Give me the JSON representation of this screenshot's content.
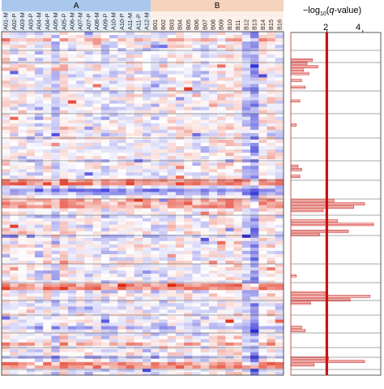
{
  "chart_data": [
    {
      "type": "heatmap",
      "groups": [
        {
          "name": "A",
          "color": "#a9c8ec",
          "columns": [
            "A01-M",
            "A02-P",
            "A03-M",
            "A03-P",
            "A04-M",
            "A04-P",
            "A05-M",
            "A05-P",
            "A06-M",
            "A07-M",
            "A07-P",
            "A08-M",
            "A09-P",
            "A10-M",
            "A10-P",
            "A11-M",
            "A11-P",
            "A12-M"
          ]
        },
        {
          "name": "B",
          "color": "#f6d3bd",
          "columns": [
            "B01",
            "B02",
            "B03",
            "B04",
            "B05",
            "B06",
            "B07",
            "B08",
            "B09",
            "B10",
            "B11",
            "B12",
            "B13",
            "B14",
            "B15",
            "B16"
          ]
        }
      ],
      "color_scale": {
        "low": "#2a2ad6",
        "mid": "#ffffff",
        "high": "#e02a14"
      },
      "grid": false,
      "legend": "none"
    },
    {
      "type": "line",
      "title": "−log10(q-value)",
      "title_parts": {
        "prefix": "−log",
        "subscript": "10",
        "paren_open": "(",
        "italic": "q",
        "suffix": "-value)"
      },
      "x_ticks": [
        "2",
        "4"
      ],
      "xlim": [
        0,
        5
      ],
      "threshold": 2,
      "threshold_color": "#cc1111",
      "line_color": "#d9534f",
      "peaks": [
        {
          "row": 0.08,
          "value": 1.2
        },
        {
          "row": 0.09,
          "value": 0.9
        },
        {
          "row": 0.1,
          "value": 1.5
        },
        {
          "row": 0.11,
          "value": 0.7
        },
        {
          "row": 0.12,
          "value": 1.0
        },
        {
          "row": 0.14,
          "value": 0.6
        },
        {
          "row": 0.16,
          "value": 0.8
        },
        {
          "row": 0.2,
          "value": 0.5
        },
        {
          "row": 0.27,
          "value": 0.3
        },
        {
          "row": 0.39,
          "value": 0.4
        },
        {
          "row": 0.4,
          "value": 0.6
        },
        {
          "row": 0.42,
          "value": 0.5
        },
        {
          "row": 0.49,
          "value": 2.4
        },
        {
          "row": 0.5,
          "value": 4.1
        },
        {
          "row": 0.51,
          "value": 3.5
        },
        {
          "row": 0.52,
          "value": 1.8
        },
        {
          "row": 0.55,
          "value": 2.6
        },
        {
          "row": 0.56,
          "value": 4.6
        },
        {
          "row": 0.58,
          "value": 3.2
        },
        {
          "row": 0.59,
          "value": 1.6
        },
        {
          "row": 0.71,
          "value": 0.3
        },
        {
          "row": 0.76,
          "value": 1.9
        },
        {
          "row": 0.77,
          "value": 4.4
        },
        {
          "row": 0.78,
          "value": 3.3
        },
        {
          "row": 0.79,
          "value": 1.1
        },
        {
          "row": 0.86,
          "value": 0.6
        },
        {
          "row": 0.87,
          "value": 0.8
        },
        {
          "row": 0.95,
          "value": 2.1
        },
        {
          "row": 0.96,
          "value": 4.1
        },
        {
          "row": 0.97,
          "value": 1.3
        }
      ]
    }
  ]
}
